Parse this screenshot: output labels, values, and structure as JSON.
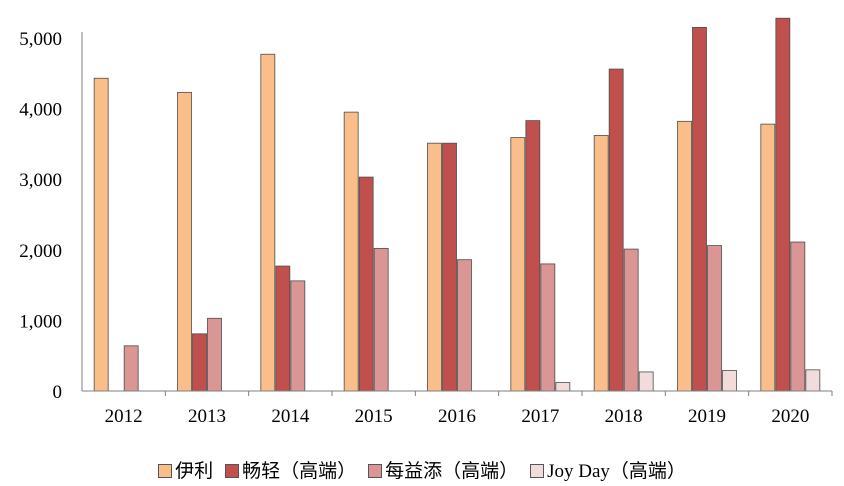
{
  "chart_data": {
    "type": "bar",
    "title": "",
    "xlabel": "",
    "ylabel": "",
    "categories": [
      "2012",
      "2013",
      "2014",
      "2015",
      "2016",
      "2017",
      "2018",
      "2019",
      "2020"
    ],
    "ylim": [
      0,
      5000
    ],
    "yticks": [
      "0",
      "1,000",
      "2,000",
      "3,000",
      "4,000",
      "5,000"
    ],
    "grid": false,
    "legend_position": "bottom",
    "series": [
      {
        "name": "伊利",
        "color": "#F9BE8A",
        "values": [
          4430,
          4230,
          4770,
          3950,
          3510,
          3590,
          3620,
          3820,
          3780
        ]
      },
      {
        "name": "畅轻（高端）",
        "color": "#C0504D",
        "values": [
          null,
          810,
          1770,
          3030,
          3510,
          3830,
          4560,
          5150,
          5280
        ]
      },
      {
        "name": "每益添（高端）",
        "color": "#D99694",
        "values": [
          640,
          1030,
          1560,
          2020,
          1860,
          1800,
          2010,
          2060,
          2110
        ]
      },
      {
        "name": "Joy Day（高端）",
        "color": "#F2DCDB",
        "values": [
          null,
          null,
          null,
          null,
          null,
          120,
          270,
          290,
          300
        ]
      }
    ]
  }
}
